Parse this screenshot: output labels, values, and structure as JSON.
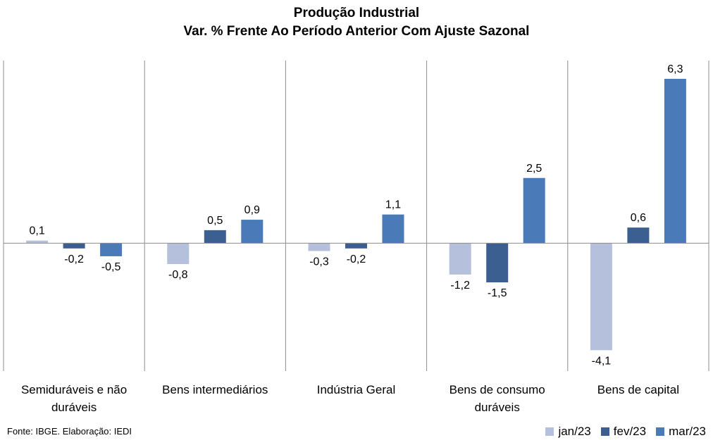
{
  "chart_data": {
    "type": "bar",
    "title": "Produção Industrial",
    "subtitle": "Var. % Frente Ao Período Anterior Com Ajuste Sazonal",
    "categories": [
      "Semiduráveis e não duráveis",
      "Bens intermediários",
      "Indústria Geral",
      "Bens de consumo duráveis",
      "Bens de capital"
    ],
    "category_lines": [
      [
        "Semiduráveis e não",
        "duráveis"
      ],
      [
        "Bens intermediários"
      ],
      [
        "Indústria Geral"
      ],
      [
        "Bens de consumo",
        "duráveis"
      ],
      [
        "Bens de capital"
      ]
    ],
    "series": [
      {
        "name": "jan/23",
        "color": "#b4c0dc",
        "values": [
          0.1,
          -0.8,
          -0.3,
          -1.2,
          -4.1
        ]
      },
      {
        "name": "fev/23",
        "color": "#3c5f91",
        "values": [
          -0.2,
          0.5,
          -0.2,
          -1.5,
          0.6
        ]
      },
      {
        "name": "mar/23",
        "color": "#4a7ab7",
        "values": [
          -0.5,
          0.9,
          1.1,
          2.5,
          6.3
        ]
      }
    ],
    "value_labels": [
      [
        "0,1",
        "-0,8",
        "-0,3",
        "-1,2",
        "-4,1"
      ],
      [
        "-0,2",
        "0,5",
        "-0,2",
        "-1,5",
        "0,6"
      ],
      [
        "-0,5",
        "0,9",
        "1,1",
        "2,5",
        "6,3"
      ]
    ],
    "ylim": [
      -4.9,
      7.0
    ],
    "grid": false,
    "legend_position": "bottom-right"
  },
  "source": "Fonte: IBGE. Elaboração: IEDI"
}
